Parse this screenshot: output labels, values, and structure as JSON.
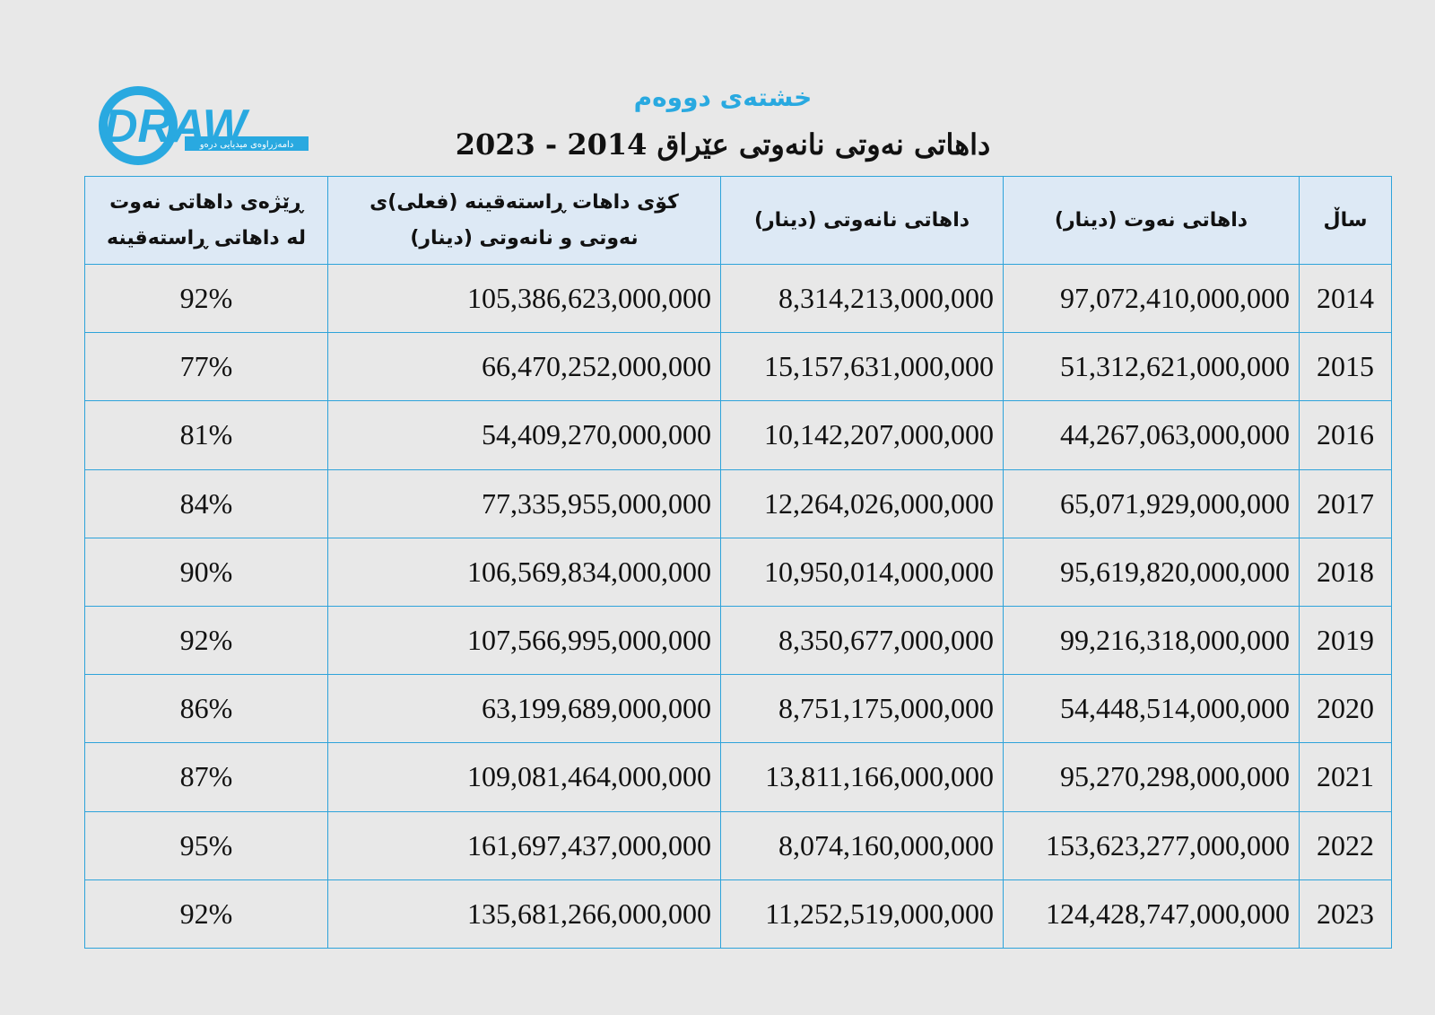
{
  "logo": {
    "name": "DRAW",
    "tagline": "دامەزراوەی میدیایی درەو"
  },
  "header": {
    "subtitle": "خشتەی دووەم",
    "title": "داهاتی نەوتی نانەوتی عێراق 2014 - 2023"
  },
  "table": {
    "columns": [
      [
        "ساڵ"
      ],
      [
        "داهاتی نەوت (دینار)"
      ],
      [
        "داهاتی نانەوتی (دینار)"
      ],
      [
        "کۆی داهات ڕاستەقینە (فعلی)ی",
        "نەوتی و نانەوتی (دینار)"
      ],
      [
        "ڕێژەی داهاتی نەوت",
        "لە داهاتی ڕاستەقینە"
      ]
    ],
    "rows": [
      [
        "2014",
        "97,072,410,000,000",
        "8,314,213,000,000",
        "105,386,623,000,000",
        "92%"
      ],
      [
        "2015",
        "51,312,621,000,000",
        "15,157,631,000,000",
        "66,470,252,000,000",
        "77%"
      ],
      [
        "2016",
        "44,267,063,000,000",
        "10,142,207,000,000",
        "54,409,270,000,000",
        "81%"
      ],
      [
        "2017",
        "65,071,929,000,000",
        "12,264,026,000,000",
        "77,335,955,000,000",
        "84%"
      ],
      [
        "2018",
        "95,619,820,000,000",
        "10,950,014,000,000",
        "106,569,834,000,000",
        "90%"
      ],
      [
        "2019",
        "99,216,318,000,000",
        "8,350,677,000,000",
        "107,566,995,000,000",
        "92%"
      ],
      [
        "2020",
        "54,448,514,000,000",
        "8,751,175,000,000",
        "63,199,689,000,000",
        "86%"
      ],
      [
        "2021",
        "95,270,298,000,000",
        "13,811,166,000,000",
        "109,081,464,000,000",
        "87%"
      ],
      [
        "2022",
        "153,623,277,000,000",
        "8,074,160,000,000",
        "161,697,437,000,000",
        "95%"
      ],
      [
        "2023",
        "124,428,747,000,000",
        "11,252,519,000,000",
        "135,681,266,000,000",
        "92%"
      ]
    ]
  }
}
